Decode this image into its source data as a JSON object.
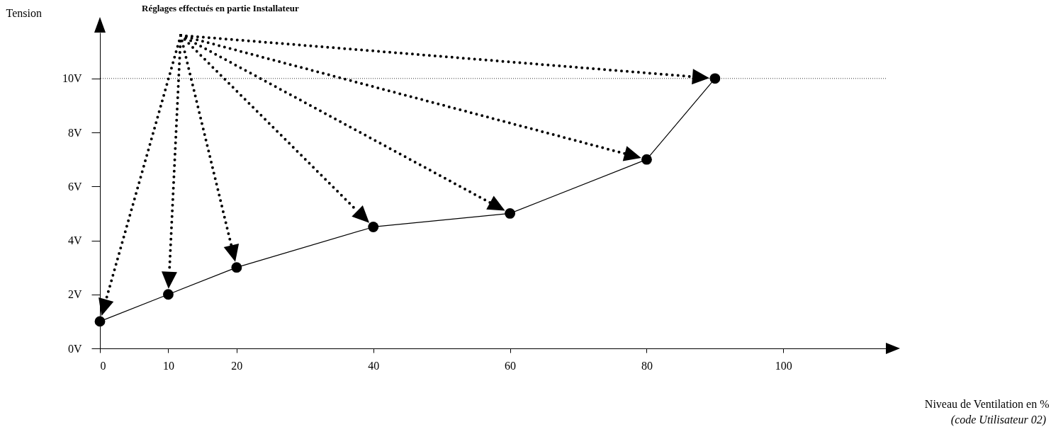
{
  "chart_data": {
    "type": "line",
    "title": "Réglages effectués en partie Installateur",
    "xlabel": "Niveau de Ventilation en %",
    "ylabel": "Tension",
    "annotations": [
      "(code Utilisateur 02)"
    ],
    "x": [
      0,
      10,
      20,
      40,
      60,
      80,
      90
    ],
    "series": [
      {
        "color": "#000000",
        "values": [
          1,
          2,
          3,
          4.5,
          5,
          7,
          10
        ]
      }
    ],
    "xlim": [
      0,
      115
    ],
    "xticks": [
      0,
      10,
      20,
      40,
      60,
      80,
      100
    ],
    "ylim": [
      0,
      11.7
    ],
    "yticks": [
      {
        "value": 0,
        "label": "0V"
      },
      {
        "value": 2,
        "label": "2V"
      },
      {
        "value": 4,
        "label": "4V"
      },
      {
        "value": 6,
        "label": "6V"
      },
      {
        "value": 8,
        "label": "8V"
      },
      {
        "value": 10,
        "label": "10V"
      }
    ],
    "ref_lines": [
      {
        "axis": "y",
        "value": 10,
        "line_style": "dotted",
        "color": "#000000"
      }
    ],
    "marker": "circle",
    "line_style": "solid",
    "grid": false
  }
}
